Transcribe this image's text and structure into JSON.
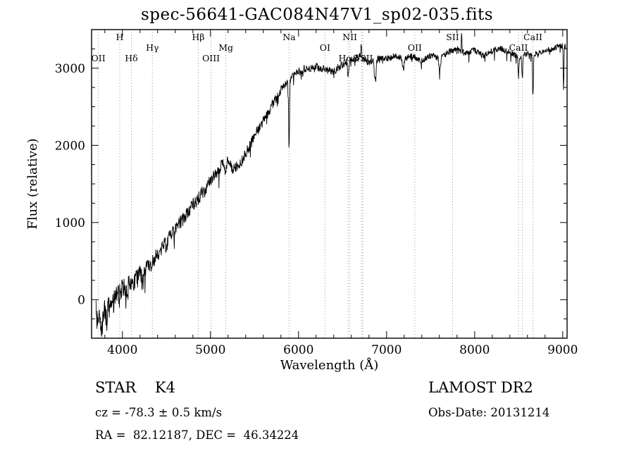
{
  "title": "spec-56641-GAC084N47V1_sp02-035.fits",
  "footer": {
    "object_type": "STAR    K4",
    "survey": "LAMOST DR2",
    "cz": "cz = -78.3 ± 0.5 km/s",
    "obs_date": "Obs-Date: 20131214",
    "coords": "RA =  82.12187, DEC =  46.34224"
  },
  "chart_data": {
    "type": "line",
    "title": "spec-56641-GAC084N47V1_sp02-035.fits",
    "xlabel": "Wavelength (Å)",
    "ylabel": "Flux (relative)",
    "xlim": [
      3650,
      9050
    ],
    "ylim": [
      -500,
      3500
    ],
    "xticks": [
      4000,
      5000,
      6000,
      7000,
      8000,
      9000
    ],
    "yticks": [
      0,
      1000,
      2000,
      3000
    ],
    "grid": "dotted vertical markers at labeled spectral lines",
    "legend": "none",
    "line_color": "#000000",
    "marker_color": "#999999",
    "series": [
      {
        "name": "spectrum",
        "points": [
          [
            3700,
            -150
          ],
          [
            3720,
            -350
          ],
          [
            3740,
            -200
          ],
          [
            3760,
            -420
          ],
          [
            3780,
            -250
          ],
          [
            3800,
            -100
          ],
          [
            3820,
            -300
          ],
          [
            3840,
            -50
          ],
          [
            3860,
            -150
          ],
          [
            3880,
            50
          ],
          [
            3900,
            -50
          ],
          [
            3920,
            100
          ],
          [
            3940,
            0
          ],
          [
            3960,
            120
          ],
          [
            3980,
            60
          ],
          [
            4000,
            180
          ],
          [
            4040,
            120
          ],
          [
            4080,
            220
          ],
          [
            4120,
            180
          ],
          [
            4160,
            280
          ],
          [
            4200,
            330
          ],
          [
            4250,
            380
          ],
          [
            4300,
            430
          ],
          [
            4350,
            480
          ],
          [
            4400,
            600
          ],
          [
            4450,
            680
          ],
          [
            4500,
            720
          ],
          [
            4550,
            830
          ],
          [
            4600,
            900
          ],
          [
            4650,
            1000
          ],
          [
            4700,
            1050
          ],
          [
            4750,
            1150
          ],
          [
            4800,
            1230
          ],
          [
            4850,
            1280
          ],
          [
            4900,
            1380
          ],
          [
            4950,
            1450
          ],
          [
            5000,
            1550
          ],
          [
            5050,
            1620
          ],
          [
            5100,
            1700
          ],
          [
            5150,
            1780
          ],
          [
            5200,
            1820
          ],
          [
            5250,
            1700
          ],
          [
            5300,
            1720
          ],
          [
            5350,
            1780
          ],
          [
            5400,
            1900
          ],
          [
            5450,
            2000
          ],
          [
            5500,
            2120
          ],
          [
            5550,
            2220
          ],
          [
            5600,
            2320
          ],
          [
            5650,
            2420
          ],
          [
            5700,
            2520
          ],
          [
            5750,
            2620
          ],
          [
            5800,
            2720
          ],
          [
            5850,
            2800
          ],
          [
            5900,
            2850
          ],
          [
            5950,
            2900
          ],
          [
            6000,
            2950
          ],
          [
            6100,
            3000
          ],
          [
            6200,
            3020
          ],
          [
            6300,
            2980
          ],
          [
            6400,
            2960
          ],
          [
            6500,
            3050
          ],
          [
            6600,
            3100
          ],
          [
            6700,
            3150
          ],
          [
            6800,
            3080
          ],
          [
            6900,
            3120
          ],
          [
            7000,
            3120
          ],
          [
            7100,
            3160
          ],
          [
            7200,
            3120
          ],
          [
            7300,
            3160
          ],
          [
            7400,
            3100
          ],
          [
            7500,
            3160
          ],
          [
            7600,
            3140
          ],
          [
            7700,
            3200
          ],
          [
            7800,
            3260
          ],
          [
            7900,
            3180
          ],
          [
            8000,
            3240
          ],
          [
            8100,
            3160
          ],
          [
            8200,
            3220
          ],
          [
            8300,
            3260
          ],
          [
            8400,
            3200
          ],
          [
            8500,
            3150
          ],
          [
            8600,
            3180
          ],
          [
            8700,
            3180
          ],
          [
            8800,
            3220
          ],
          [
            8900,
            3260
          ],
          [
            9000,
            3300
          ],
          [
            9040,
            3280
          ]
        ]
      }
    ],
    "features": [
      {
        "wl": 4227,
        "amp": -180,
        "sigma": 6
      },
      {
        "wl": 5172,
        "amp": -200,
        "sigma": 7
      },
      {
        "wl": 5893,
        "amp": -880,
        "sigma": 5
      },
      {
        "wl": 6563,
        "amp": -230,
        "sigma": 5
      },
      {
        "wl": 6712,
        "amp": 180,
        "sigma": 4
      },
      {
        "wl": 6870,
        "amp": -260,
        "sigma": 10
      },
      {
        "wl": 7190,
        "amp": -150,
        "sigma": 8
      },
      {
        "wl": 7605,
        "amp": -180,
        "sigma": 9
      },
      {
        "wl": 7850,
        "amp": 280,
        "sigma": 4
      },
      {
        "wl": 8498,
        "amp": -260,
        "sigma": 5
      },
      {
        "wl": 8542,
        "amp": -280,
        "sigma": 5
      },
      {
        "wl": 8662,
        "amp": -560,
        "sigma": 5
      },
      {
        "wl": 9010,
        "amp": -600,
        "sigma": 4
      }
    ],
    "noise_profile": [
      [
        3700,
        145
      ],
      [
        4200,
        110
      ],
      [
        4800,
        85
      ],
      [
        5400,
        70
      ],
      [
        6000,
        55
      ],
      [
        6600,
        48
      ],
      [
        7400,
        42
      ],
      [
        9040,
        38
      ]
    ],
    "spectral_lines": [
      {
        "label": "OII",
        "anchor": 3727,
        "row": 2,
        "lines": [
          3727
        ]
      },
      {
        "label": "H",
        "anchor": 3970,
        "row": 0,
        "lines": [
          3970
        ]
      },
      {
        "label": "Hδ",
        "anchor": 4102,
        "row": 2,
        "lines": [
          4102
        ]
      },
      {
        "label": "Hγ",
        "anchor": 4340,
        "row": 1,
        "lines": [
          4340
        ]
      },
      {
        "label": "Hβ",
        "anchor": 4861,
        "row": 0,
        "lines": [
          4861
        ]
      },
      {
        "label": "OIII",
        "anchor": 5007,
        "row": 2,
        "lines": [
          5007
        ]
      },
      {
        "label": "Mg",
        "anchor": 5175,
        "row": 1,
        "lines": [
          5175
        ]
      },
      {
        "label": "Na",
        "anchor": 5893,
        "row": 0,
        "lines": [
          5893
        ]
      },
      {
        "label": "OI",
        "anchor": 6300,
        "row": 1,
        "lines": [
          6300
        ]
      },
      {
        "label": "NII",
        "anchor": 6583,
        "row": 0,
        "lines": [
          6583
        ]
      },
      {
        "label": "Hα&SII",
        "anchor": 6650,
        "row": 2,
        "lines": [
          6563,
          6717,
          6731
        ]
      },
      {
        "label": "OII",
        "anchor": 7320,
        "row": 1,
        "lines": [
          7320
        ]
      },
      {
        "label": "SII",
        "anchor": 7750,
        "row": 0,
        "lines": [
          7750
        ]
      },
      {
        "label": "CaII",
        "anchor": 8498,
        "row": 1,
        "lines": [
          8498,
          8542
        ]
      },
      {
        "label": "CaII",
        "anchor": 8662,
        "row": 0,
        "lines": [
          8662
        ]
      }
    ]
  }
}
